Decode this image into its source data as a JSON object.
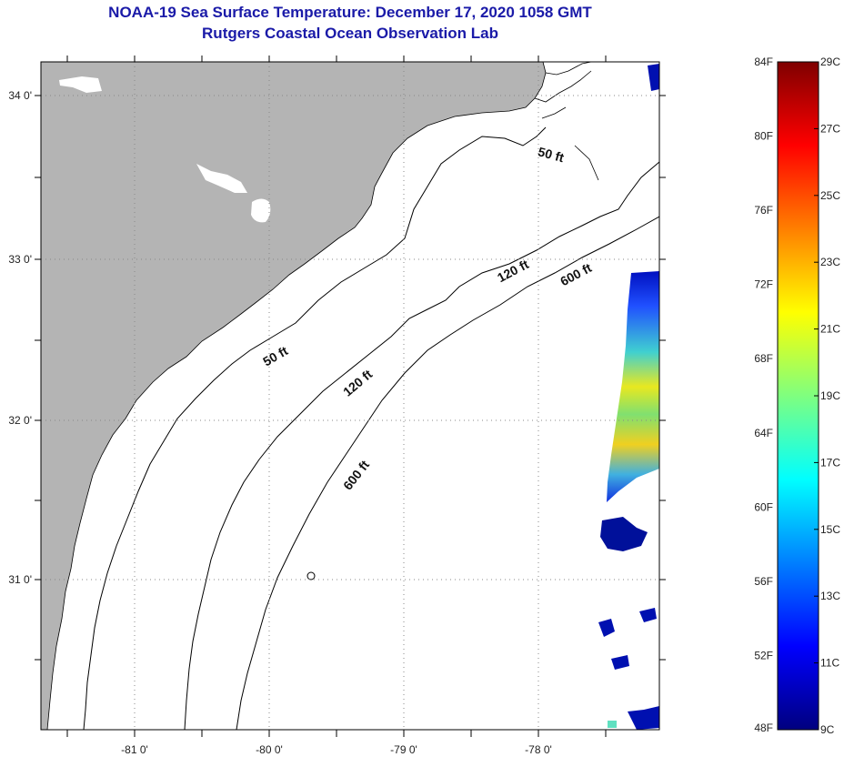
{
  "title": "NOAA-19 Sea Surface Temperature:  December 17, 2020 1058 GMT",
  "subtitle": "Rutgers Coastal Ocean Observation Lab",
  "map": {
    "latitude_labels": [
      "34 0'",
      "33 0'",
      "32 0'",
      "31 0'"
    ],
    "longitude_labels": [
      "-81 0'",
      "-80 0'",
      "-79 0'",
      "-78 0'"
    ],
    "contour_labels": [
      {
        "text": "50 ft",
        "key": "a"
      },
      {
        "text": "50 ft",
        "key": "b"
      },
      {
        "text": "120 ft",
        "key": "a"
      },
      {
        "text": "120 ft",
        "key": "b"
      },
      {
        "text": "600 ft",
        "key": "a"
      },
      {
        "text": "600 ft",
        "key": "b"
      }
    ],
    "colors": {
      "land": "#b4b4b4",
      "ocean": "#ffffff",
      "contour": "#000000",
      "grid": "#888888"
    }
  },
  "colorbar": {
    "fahrenheit_labels": [
      "84F",
      "80F",
      "76F",
      "72F",
      "68F",
      "64F",
      "60F",
      "56F",
      "52F",
      "48F"
    ],
    "celsius_labels": [
      "29C",
      "27C",
      "25C",
      "23C",
      "21C",
      "19C",
      "17C",
      "15C",
      "13C",
      "11C",
      "9C"
    ],
    "fahrenheit_range": [
      48,
      84
    ],
    "celsius_range": [
      9,
      29
    ],
    "colormap": [
      "#00007f",
      "#0000ff",
      "#007fff",
      "#00ffff",
      "#7fff7f",
      "#ffff00",
      "#ff7f00",
      "#ff0000",
      "#7f0000"
    ]
  }
}
